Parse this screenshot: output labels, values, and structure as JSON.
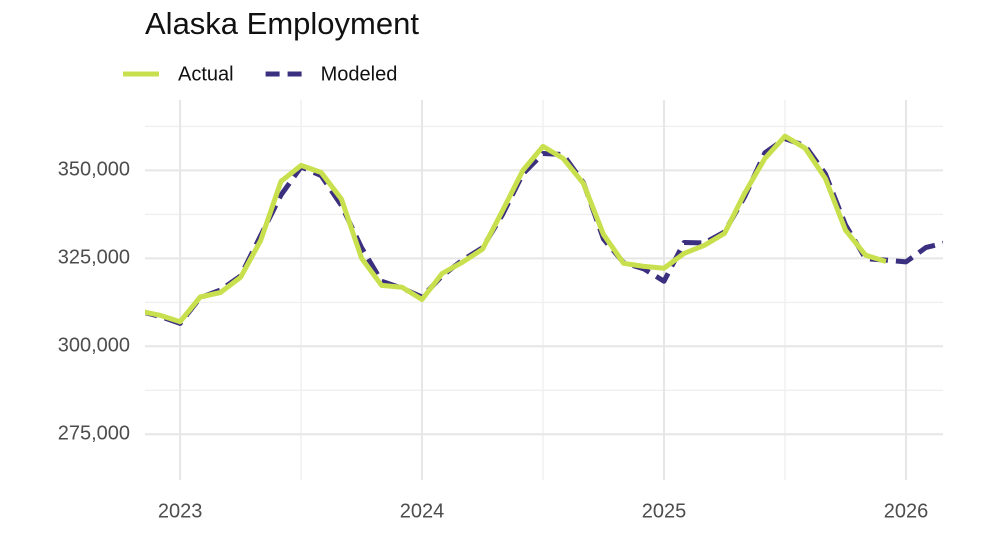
{
  "chart_data": {
    "type": "line",
    "title": "Alaska Employment",
    "x": [
      2022.833,
      2022.917,
      2023.0,
      2023.083,
      2023.167,
      2023.25,
      2023.333,
      2023.417,
      2023.5,
      2023.583,
      2023.667,
      2023.75,
      2023.833,
      2023.917,
      2024.0,
      2024.083,
      2024.167,
      2024.25,
      2024.333,
      2024.417,
      2024.5,
      2024.583,
      2024.667,
      2024.75,
      2024.833,
      2024.917,
      2025.0,
      2025.083,
      2025.167,
      2025.25,
      2025.333,
      2025.417,
      2025.5,
      2025.583,
      2025.667,
      2025.75,
      2025.833,
      2025.917,
      2026.0,
      2026.083,
      2026.167
    ],
    "series": [
      {
        "name": "Actual",
        "color": "#c8e04e",
        "line_style": "solid",
        "values": [
          310000,
          308800,
          307000,
          314000,
          315300,
          319600,
          330100,
          346900,
          351400,
          349400,
          341800,
          325000,
          317300,
          316800,
          313300,
          320700,
          323900,
          327600,
          338600,
          350000,
          356800,
          353400,
          346300,
          331800,
          323600,
          322700,
          322200,
          326400,
          328700,
          332100,
          343500,
          353400,
          359700,
          356300,
          347700,
          333000,
          325900,
          324100,
          null,
          null,
          null
        ]
      },
      {
        "name": "Modeled",
        "color": "#3b2f80",
        "line_style": "dashed",
        "values": [
          310000,
          308500,
          306500,
          313800,
          316000,
          320000,
          331500,
          343000,
          351000,
          348500,
          340000,
          328000,
          318500,
          316500,
          314000,
          320000,
          324500,
          328000,
          337500,
          349000,
          354800,
          354500,
          346500,
          330500,
          323800,
          322000,
          318500,
          329500,
          329400,
          332500,
          342500,
          355000,
          359000,
          357000,
          349000,
          334500,
          324900,
          324500,
          324000,
          328100,
          329500
        ]
      }
    ],
    "xlim": [
      2022.855,
      2026.153
    ],
    "xticks": [
      2023,
      2024,
      2025,
      2026
    ],
    "x_minor_ticks": [
      2023.5,
      2024.5,
      2025.5
    ],
    "ylim": [
      262000,
      370000
    ],
    "yticks": [
      {
        "value": 275000,
        "label": "275,000"
      },
      {
        "value": 300000,
        "label": "300,000"
      },
      {
        "value": 325000,
        "label": "325,000"
      },
      {
        "value": 350000,
        "label": "350,000"
      }
    ],
    "y_minor_ticks": [
      287500,
      312500,
      337500,
      362500
    ],
    "grid": true,
    "legend": "top-left"
  }
}
